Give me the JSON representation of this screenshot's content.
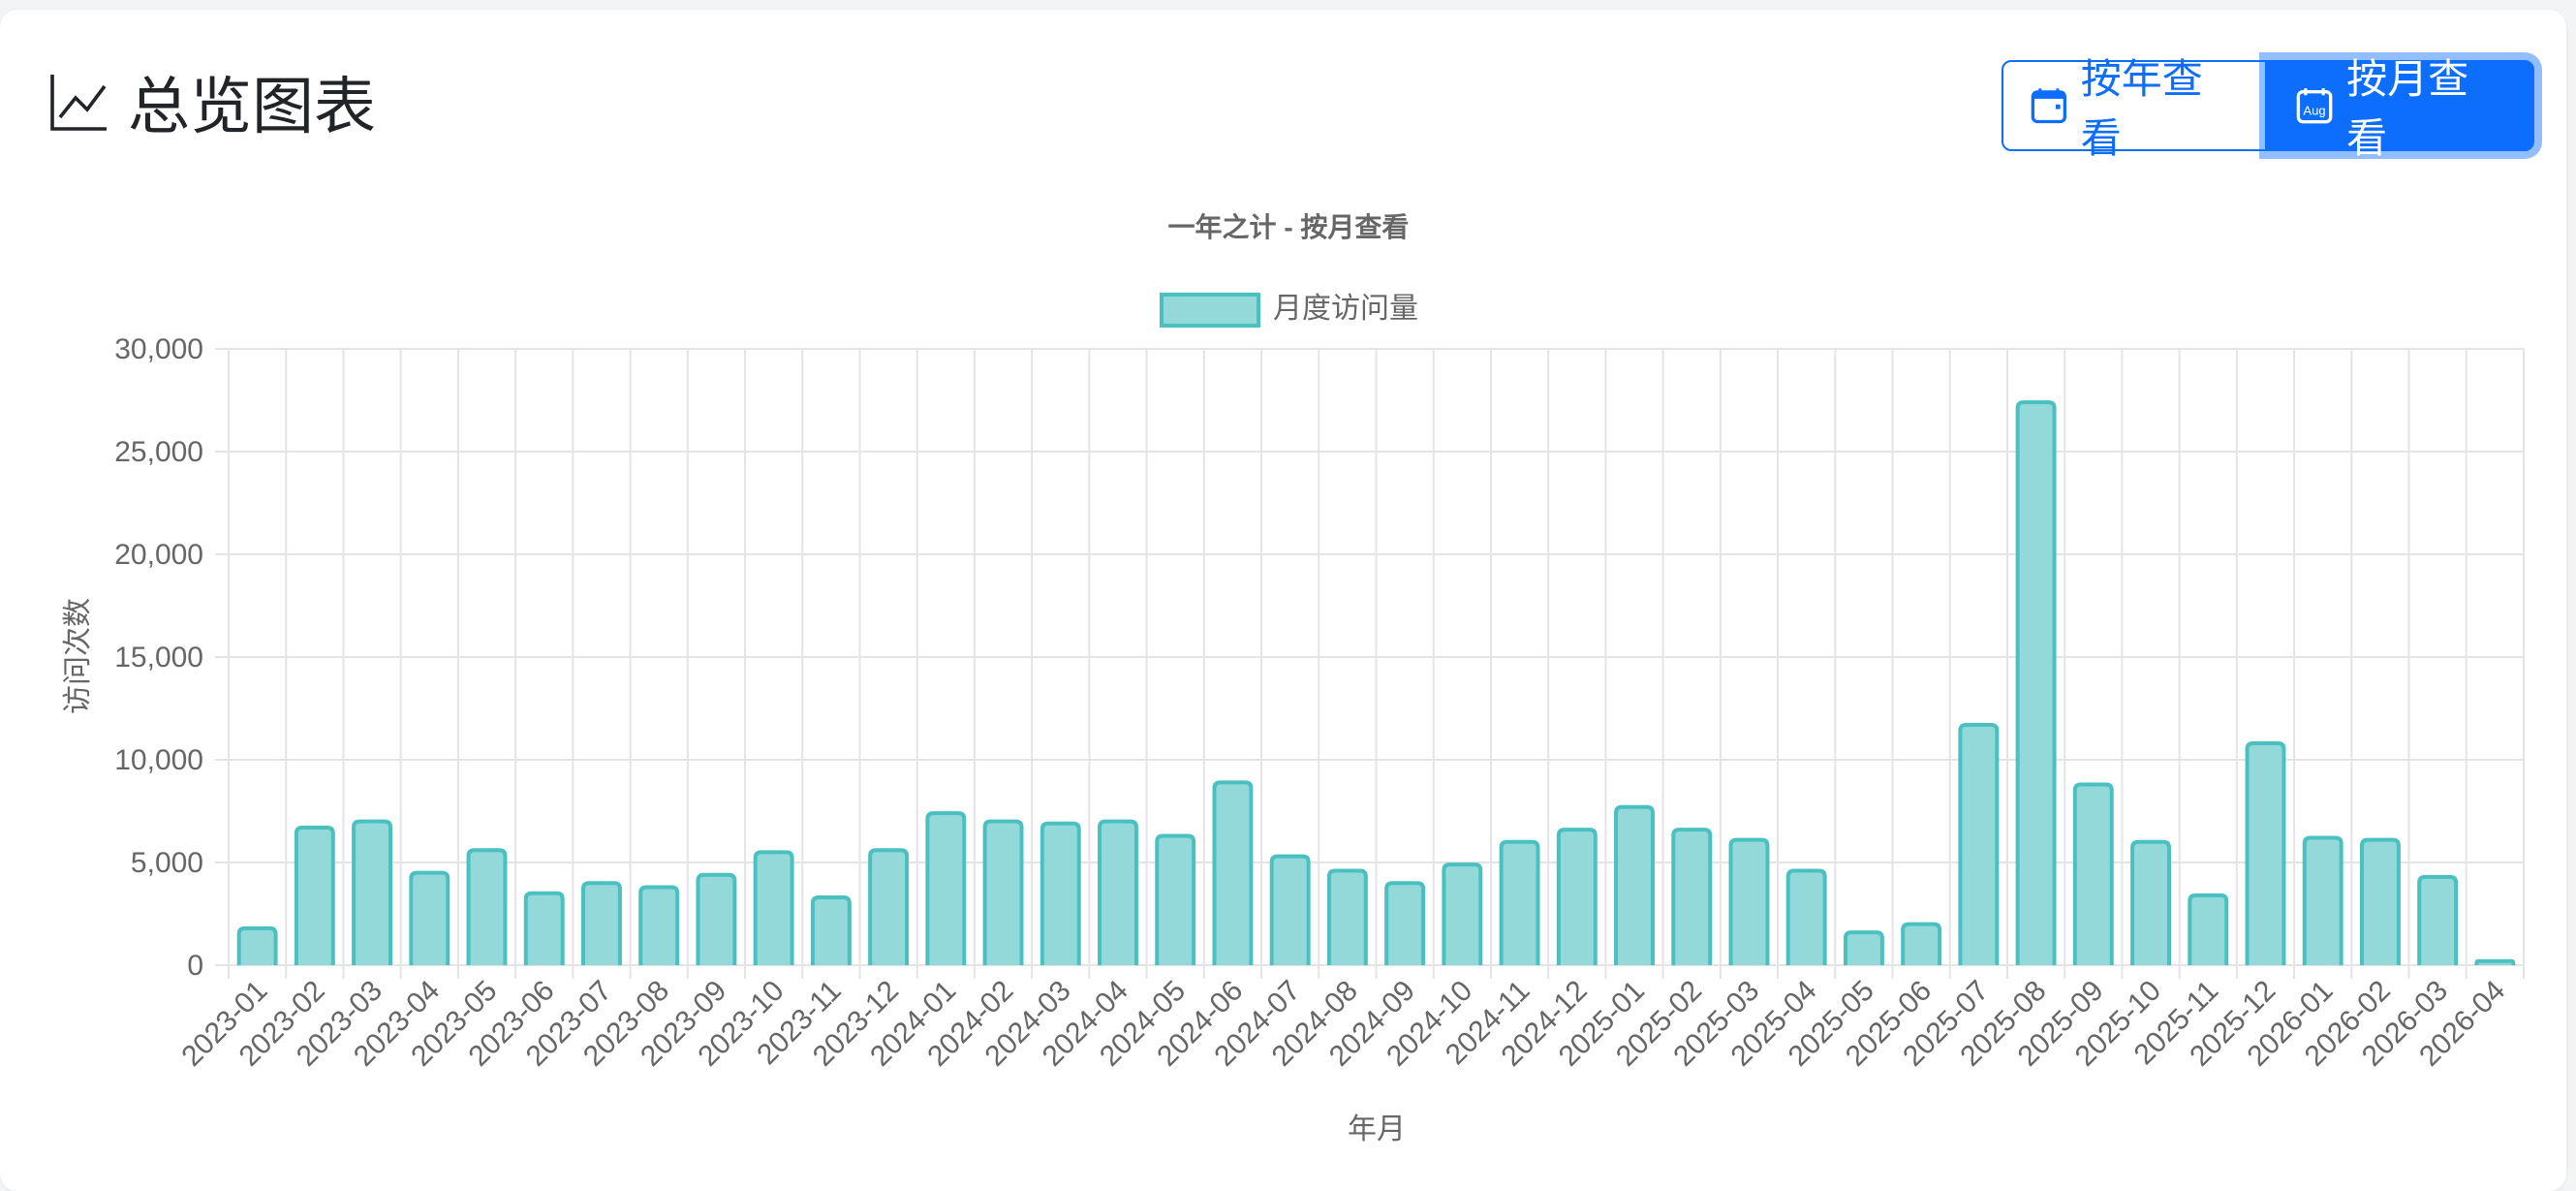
{
  "header": {
    "title": "总览图表",
    "title_icon": "line-chart-icon",
    "buttons": [
      {
        "label": "按年查看",
        "icon": "calendar-icon",
        "active": false
      },
      {
        "label": "按月查看",
        "icon": "calendar-aug-icon",
        "icon_text": "Aug",
        "active": true
      }
    ]
  },
  "colors": {
    "bar_fill": "#94d9da",
    "bar_border": "#4bc0c0",
    "primary": "#0d6efd"
  },
  "chart_data": {
    "type": "bar",
    "title": "一年之计 - 按月查看",
    "xlabel": "年月",
    "ylabel": "访问次数",
    "ylim": [
      0,
      30000
    ],
    "yticks": [
      "0",
      "5,000",
      "10,000",
      "15,000",
      "20,000",
      "25,000",
      "30,000"
    ],
    "grid": true,
    "legend_position": "top",
    "categories": [
      "2023-01",
      "2023-02",
      "2023-03",
      "2023-04",
      "2023-05",
      "2023-06",
      "2023-07",
      "2023-08",
      "2023-09",
      "2023-10",
      "2023-11",
      "2023-12",
      "2024-01",
      "2024-02",
      "2024-03",
      "2024-04",
      "2024-05",
      "2024-06",
      "2024-07",
      "2024-08",
      "2024-09",
      "2024-10",
      "2024-11",
      "2024-12",
      "2025-01",
      "2025-02",
      "2025-03",
      "2025-04",
      "2025-05",
      "2025-06",
      "2025-07",
      "2025-08",
      "2025-09",
      "2025-10",
      "2025-11",
      "2025-12",
      "2026-01",
      "2026-02",
      "2026-03",
      "2026-04"
    ],
    "series": [
      {
        "name": "月度访问量",
        "values": [
          1800,
          6700,
          7000,
          4500,
          5600,
          3500,
          4000,
          3800,
          4400,
          5500,
          3300,
          5600,
          7400,
          7000,
          6900,
          7000,
          6300,
          8900,
          5300,
          4600,
          4000,
          4900,
          6000,
          6600,
          7700,
          6600,
          6100,
          4600,
          1600,
          2000,
          11700,
          27400,
          8800,
          6000,
          3400,
          10800,
          6200,
          6100,
          4300,
          200
        ]
      }
    ]
  }
}
